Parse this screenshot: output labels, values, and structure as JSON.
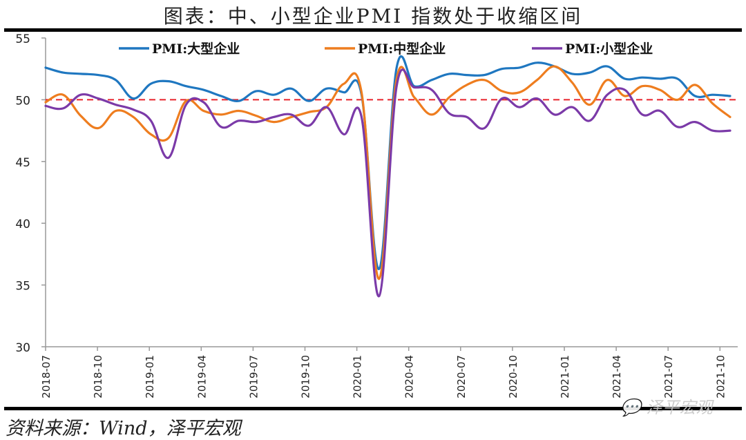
{
  "title": "图表：中、小型企业PMI 指数处于收缩区间",
  "source": "资料来源：Wind，泽平宏观",
  "watermark": "泽平宏观",
  "chart_data": {
    "type": "line",
    "title": "图表：中、小型企业PMI 指数处于收缩区间",
    "xlabel": "",
    "ylabel": "",
    "ylim": [
      30,
      55
    ],
    "yticks": [
      30,
      35,
      40,
      45,
      50,
      55
    ],
    "xtick_labels": [
      "2018-07",
      "2018-10",
      "2019-01",
      "2019-04",
      "2019-07",
      "2019-10",
      "2020-01",
      "2020-04",
      "2020-07",
      "2020-10",
      "2021-01",
      "2021-04",
      "2021-07",
      "2021-10"
    ],
    "reference_line": {
      "y": 50,
      "style": "dashed",
      "color": "#e8232a"
    },
    "legend_position": "top",
    "grid": false,
    "x": [
      "2018-07",
      "2018-08",
      "2018-09",
      "2018-10",
      "2018-11",
      "2018-12",
      "2019-01",
      "2019-02",
      "2019-03",
      "2019-04",
      "2019-05",
      "2019-06",
      "2019-07",
      "2019-08",
      "2019-09",
      "2019-10",
      "2019-11",
      "2019-12",
      "2020-01",
      "2020-02",
      "2020-03",
      "2020-04",
      "2020-05",
      "2020-06",
      "2020-07",
      "2020-08",
      "2020-09",
      "2020-10",
      "2020-11",
      "2020-12",
      "2021-01",
      "2021-02",
      "2021-03",
      "2021-04",
      "2021-05",
      "2021-06",
      "2021-07",
      "2021-08",
      "2021-09",
      "2021-10"
    ],
    "series": [
      {
        "name": "PMI:大型企业",
        "color": "#1f77c0",
        "values": [
          52.6,
          52.2,
          52.1,
          52.0,
          51.6,
          50.1,
          51.3,
          51.5,
          51.1,
          50.8,
          50.3,
          49.9,
          50.7,
          50.4,
          50.9,
          49.9,
          50.9,
          50.6,
          50.4,
          36.3,
          52.6,
          51.1,
          51.6,
          52.1,
          52.0,
          52.0,
          52.5,
          52.6,
          53.0,
          52.7,
          52.1,
          52.2,
          52.7,
          51.7,
          51.8,
          51.7,
          51.7,
          50.3,
          50.4,
          50.3
        ]
      },
      {
        "name": "PMI:中型企业",
        "color": "#ee7d1f",
        "values": [
          49.8,
          50.4,
          48.7,
          47.7,
          49.1,
          48.6,
          47.2,
          46.9,
          49.9,
          49.1,
          48.8,
          49.1,
          48.7,
          48.2,
          48.6,
          49.0,
          49.4,
          51.3,
          50.6,
          35.5,
          51.7,
          50.2,
          48.8,
          50.2,
          51.2,
          51.6,
          50.7,
          50.6,
          51.6,
          52.7,
          51.4,
          49.6,
          51.6,
          50.3,
          51.1,
          50.8,
          50.0,
          51.2,
          49.7,
          48.6
        ]
      },
      {
        "name": "PMI:小型企业",
        "color": "#7b3aa8",
        "values": [
          49.5,
          49.3,
          50.4,
          50.1,
          49.6,
          49.2,
          48.3,
          45.3,
          49.6,
          49.8,
          47.8,
          48.3,
          48.2,
          48.6,
          48.8,
          47.9,
          49.4,
          47.2,
          48.6,
          34.1,
          51.1,
          51.0,
          50.8,
          48.9,
          48.6,
          47.7,
          50.1,
          49.4,
          50.1,
          48.8,
          49.4,
          48.3,
          50.4,
          50.8,
          48.8,
          49.1,
          47.8,
          48.2,
          47.5,
          47.5
        ]
      }
    ]
  }
}
